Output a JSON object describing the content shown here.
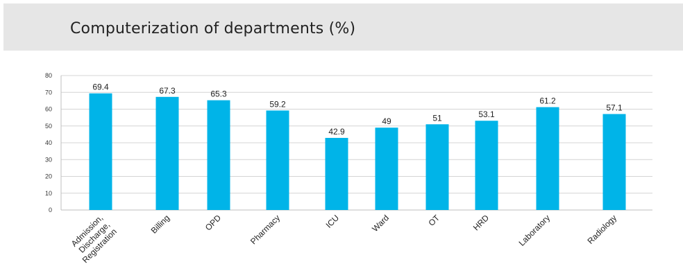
{
  "header": {
    "title": "Computerization of departments (%)"
  },
  "colors": {
    "bar": "#00b4e8",
    "grid": "#d4d4d4",
    "header_bg": "#e6e6e6"
  },
  "chart_data": {
    "type": "bar",
    "title": "Computerization of departments (%)",
    "xlabel": "",
    "ylabel": "",
    "ylim": [
      0,
      80
    ],
    "yticks": [
      0,
      10,
      20,
      30,
      40,
      50,
      60,
      70,
      80
    ],
    "grid": true,
    "legend": "none",
    "categories": [
      [
        "Admission,",
        "Discharge,",
        "Registration"
      ],
      [
        "Billing"
      ],
      [
        "OPD"
      ],
      [
        "Pharmacy"
      ],
      [
        "ICU"
      ],
      [
        "Ward"
      ],
      [
        "OT"
      ],
      [
        "HRD"
      ],
      [
        "Laboratory"
      ],
      [
        "Radiology"
      ]
    ],
    "values": [
      69.4,
      67.3,
      65.3,
      59.2,
      42.9,
      49,
      51,
      53.1,
      61.2,
      57.1
    ],
    "value_labels": [
      "69.4",
      "67.3",
      "65.3",
      "59.2",
      "42.9",
      "49",
      "51",
      "53.1",
      "61.2",
      "57.1"
    ]
  }
}
